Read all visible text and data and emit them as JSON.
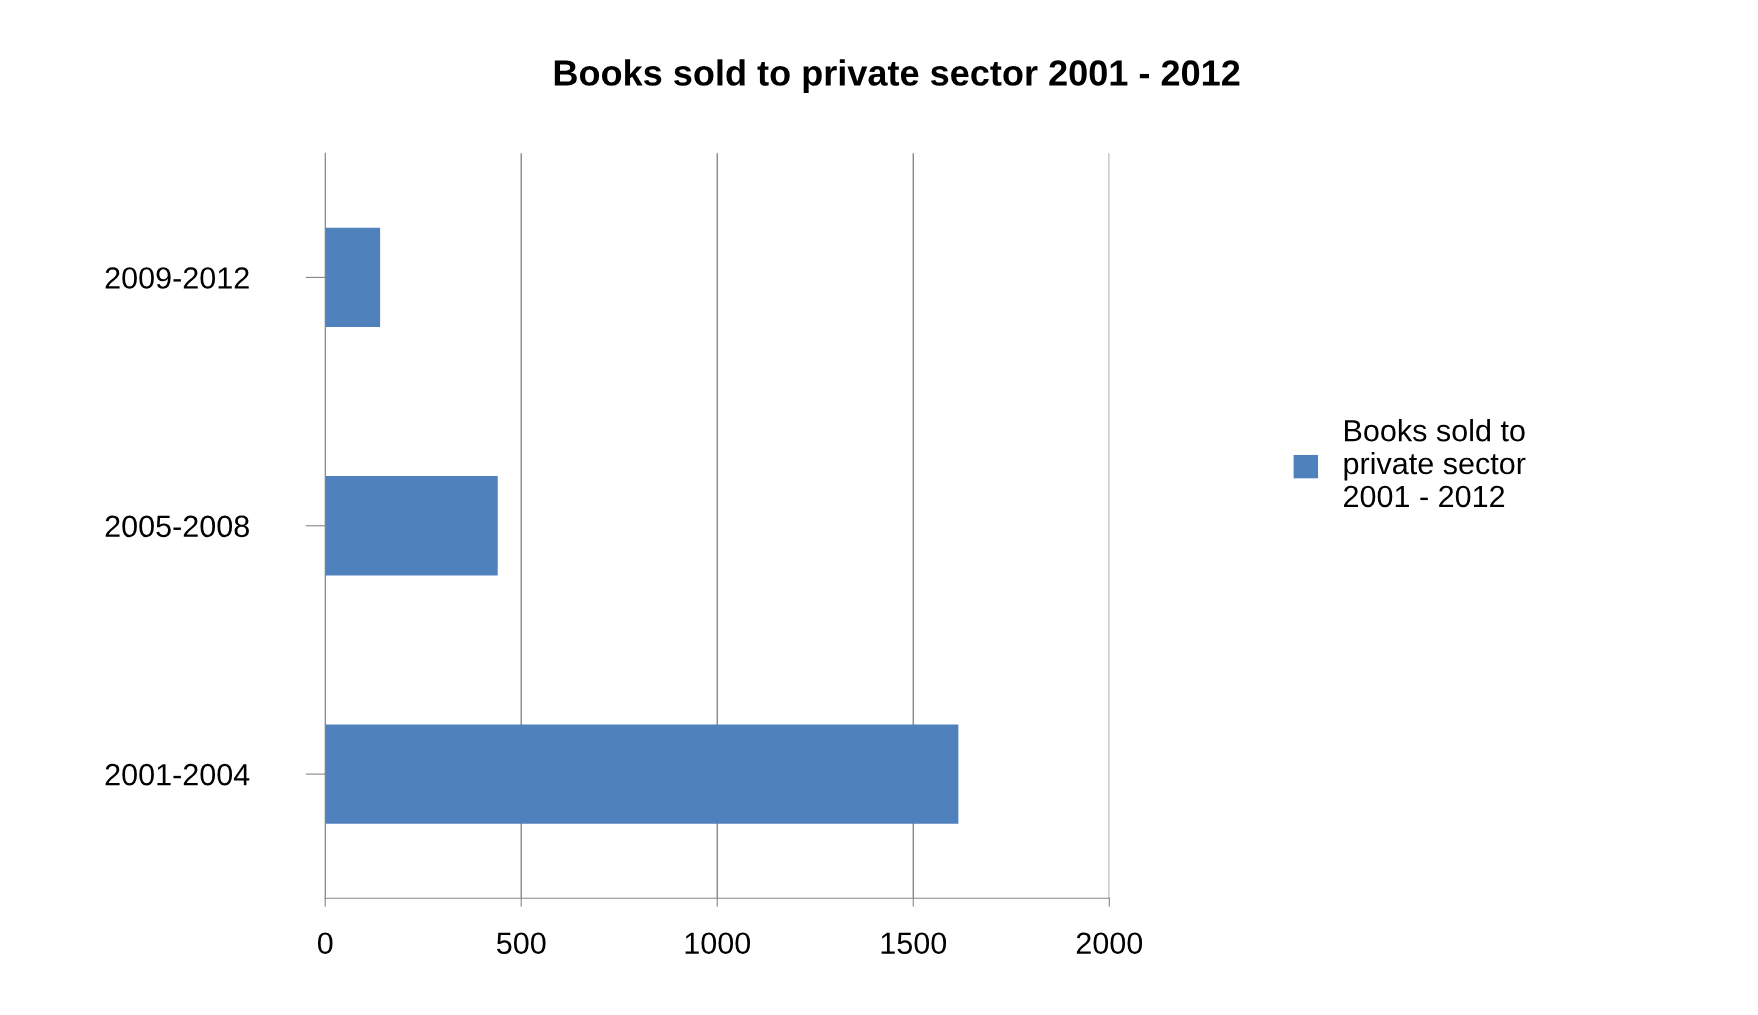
{
  "chart_data": {
    "type": "bar",
    "orientation": "horizontal",
    "title": "Books sold to private sector 2001 - 2012",
    "categories": [
      "2009-2012",
      "2005-2008",
      "2001-2004"
    ],
    "series": [
      {
        "name": "Books sold to\nprivate sector\n2001 - 2012",
        "color": "#4f81bd",
        "values": [
          140,
          440,
          1615
        ]
      }
    ],
    "xlim": [
      0,
      2000
    ],
    "xticks": [
      0,
      500,
      1000,
      1500,
      2000
    ],
    "grid": "x",
    "legend": "right"
  }
}
